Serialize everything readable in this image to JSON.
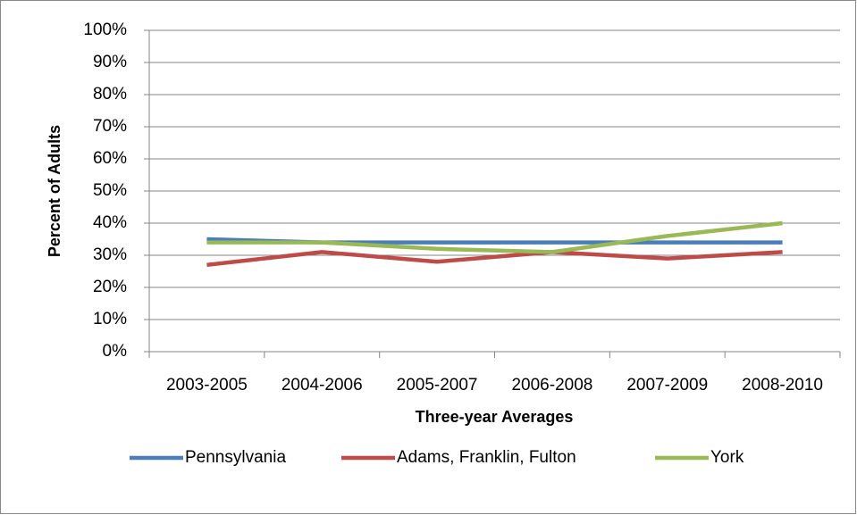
{
  "chart_data": {
    "type": "line",
    "y_label": "Percent of Adults",
    "x_label": "Three-year Averages",
    "categories": [
      "2003-2005",
      "2004-2006",
      "2005-2007",
      "2006-2008",
      "2007-2009",
      "2008-2010"
    ],
    "series": [
      {
        "name": "Pennsylvania",
        "color": "#4a7ebb",
        "values": [
          35,
          34,
          34,
          34,
          34,
          34
        ]
      },
      {
        "name": "Adams, Franklin, Fulton",
        "color": "#be4b48",
        "values": [
          27,
          31,
          28,
          31,
          29,
          31
        ]
      },
      {
        "name": "York",
        "color": "#98b954",
        "values": [
          34,
          34,
          32,
          31,
          36,
          40
        ]
      }
    ],
    "ylim": [
      0,
      100
    ],
    "yticks": [
      {
        "value": 0,
        "label": "0%"
      },
      {
        "value": 10,
        "label": "10%"
      },
      {
        "value": 20,
        "label": "20%"
      },
      {
        "value": 30,
        "label": "30%"
      },
      {
        "value": 40,
        "label": "40%"
      },
      {
        "value": 50,
        "label": "50%"
      },
      {
        "value": 60,
        "label": "60%"
      },
      {
        "value": 70,
        "label": "70%"
      },
      {
        "value": 80,
        "label": "80%"
      },
      {
        "value": 90,
        "label": "90%"
      },
      {
        "value": 100,
        "label": "100%"
      }
    ],
    "grid": true,
    "legend": "bottom"
  }
}
